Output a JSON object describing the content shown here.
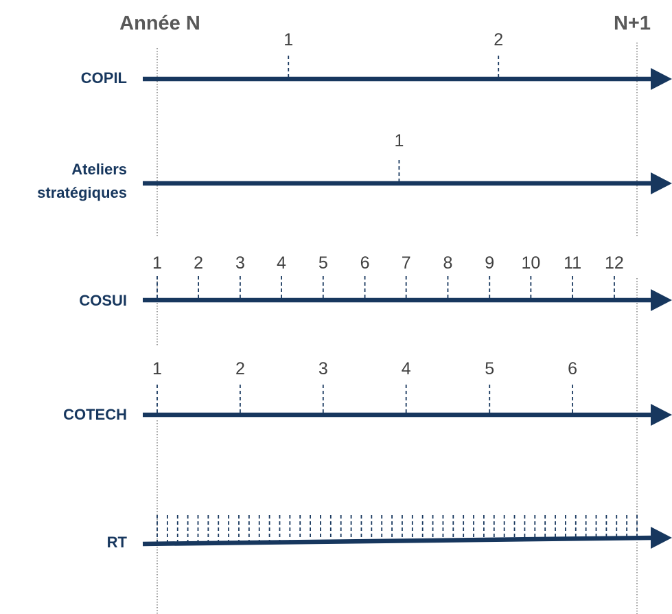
{
  "header": {
    "year_start": "Année N",
    "year_end": "N+1"
  },
  "rows": [
    {
      "id": "copil",
      "label_lines": [
        "COPIL"
      ],
      "ticks": [
        {
          "label": "1",
          "pos": 0.28
        },
        {
          "label": "2",
          "pos": 0.728
        }
      ]
    },
    {
      "id": "ateliers",
      "label_lines": [
        "Ateliers",
        "stratégiques"
      ],
      "ticks": [
        {
          "label": "1",
          "pos": 0.516
        }
      ]
    },
    {
      "id": "cosui",
      "label_lines": [
        "COSUI"
      ],
      "ticks": [
        {
          "label": "1",
          "pos": 0.0
        },
        {
          "label": "2",
          "pos": 0.088
        },
        {
          "label": "3",
          "pos": 0.177
        },
        {
          "label": "4",
          "pos": 0.265
        },
        {
          "label": "5",
          "pos": 0.354
        },
        {
          "label": "6",
          "pos": 0.443
        },
        {
          "label": "7",
          "pos": 0.531
        },
        {
          "label": "8",
          "pos": 0.62
        },
        {
          "label": "9",
          "pos": 0.709
        },
        {
          "label": "10",
          "pos": 0.797
        },
        {
          "label": "11",
          "pos": 0.886
        },
        {
          "label": "12",
          "pos": 0.975
        }
      ]
    },
    {
      "id": "cotech",
      "label_lines": [
        "COTECH"
      ],
      "ticks": [
        {
          "label": "1",
          "pos": 0.0
        },
        {
          "label": "2",
          "pos": 0.177
        },
        {
          "label": "3",
          "pos": 0.354
        },
        {
          "label": "4",
          "pos": 0.531
        },
        {
          "label": "5",
          "pos": 0.709
        },
        {
          "label": "6",
          "pos": 0.886
        }
      ]
    },
    {
      "id": "rt",
      "label_lines": [
        "RT"
      ],
      "tick_count": 48,
      "ticks": []
    }
  ]
}
